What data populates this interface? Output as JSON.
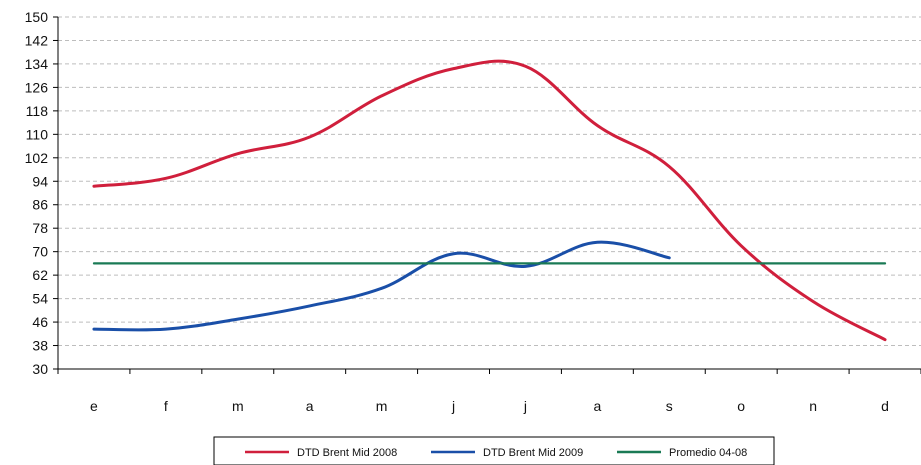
{
  "chart_data": {
    "type": "line",
    "categories": [
      "e",
      "f",
      "m",
      "a",
      "m",
      "j",
      "j",
      "a",
      "s",
      "o",
      "n",
      "d"
    ],
    "ylim": [
      30,
      150
    ],
    "yticks": [
      30,
      38,
      46,
      54,
      62,
      70,
      78,
      86,
      94,
      102,
      110,
      118,
      126,
      134,
      142,
      150
    ],
    "grid": true,
    "legend_position": "bottom",
    "series": [
      {
        "name": "DTD Brent Mid 2008",
        "color": "#d01f3c",
        "values": [
          92.3,
          95,
          103.4,
          109.1,
          123.1,
          132.4,
          133.2,
          113,
          99,
          72,
          53,
          40
        ]
      },
      {
        "name": "DTD Brent Mid 2009",
        "color": "#1a4fa8",
        "values": [
          43.6,
          43.6,
          47,
          51.5,
          57.5,
          69.3,
          65,
          73.2,
          67.9,
          null,
          null,
          null
        ]
      },
      {
        "name": "Promedio 04-08",
        "color": "#1a7a55",
        "values": [
          66,
          66,
          66,
          66,
          66,
          66,
          66,
          66,
          66,
          66,
          66,
          66
        ]
      }
    ]
  }
}
